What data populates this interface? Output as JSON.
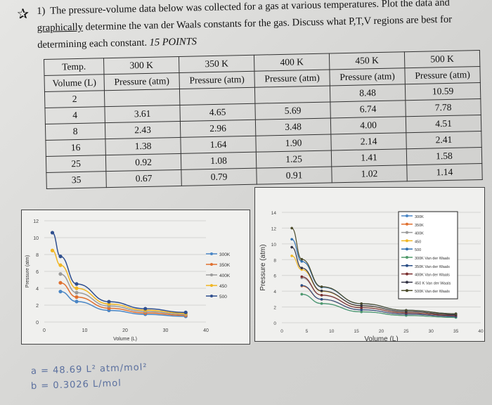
{
  "question": {
    "number": "1)",
    "text_before": "The pressure-volume data below was collected for a gas at various temperatures. Plot the data and ",
    "underlined": "graphically",
    "text_after": " determine the van der Waals constants for the gas. Discuss what P,T,V regions are best for determining each constant. ",
    "points": "15 POINTS",
    "icon": "star-icon"
  },
  "table": {
    "header1": [
      "Temp.",
      "300 K",
      "350 K",
      "400 K",
      "450 K",
      "500 K"
    ],
    "header2": [
      "Volume (L)",
      "Pressure (atm)",
      "Pressure (atm)",
      "Pressure (atm)",
      "Pressure (atm)",
      "Pressure (atm)"
    ],
    "rows": [
      [
        "2",
        "",
        "",
        "",
        "8.48",
        "10.59"
      ],
      [
        "4",
        "3.61",
        "4.65",
        "5.69",
        "6.74",
        "7.78"
      ],
      [
        "8",
        "2.43",
        "2.96",
        "3.48",
        "4.00",
        "4.51"
      ],
      [
        "16",
        "1.38",
        "1.64",
        "1.90",
        "2.14",
        "2.41"
      ],
      [
        "25",
        "0.92",
        "1.08",
        "1.25",
        "1.41",
        "1.58"
      ],
      [
        "35",
        "0.67",
        "0.79",
        "0.91",
        "1.02",
        "1.14"
      ]
    ]
  },
  "chart_data": [
    {
      "type": "line",
      "xlabel": "Volume (L)",
      "ylabel": "Pressure (atm)",
      "xlim": [
        0,
        40
      ],
      "ylim": [
        0,
        12
      ],
      "xticks": [
        "0",
        "10",
        "20",
        "30",
        "40"
      ],
      "yticks": [
        "0",
        "2",
        "4",
        "6",
        "8",
        "10",
        "12"
      ],
      "grid": true,
      "legend": "right",
      "x": [
        2,
        4,
        8,
        16,
        25,
        35
      ],
      "series": [
        {
          "name": "300K",
          "color": "#4a86c5",
          "values": [
            null,
            3.61,
            2.43,
            1.38,
            0.92,
            0.67
          ]
        },
        {
          "name": "350K",
          "color": "#e0702f",
          "values": [
            null,
            4.65,
            2.96,
            1.64,
            1.08,
            0.79
          ]
        },
        {
          "name": "400K",
          "color": "#9a9a9a",
          "values": [
            null,
            5.69,
            3.48,
            1.9,
            1.25,
            0.91
          ]
        },
        {
          "name": "450",
          "color": "#f0b623",
          "values": [
            8.48,
            6.74,
            4.0,
            2.14,
            1.41,
            1.02
          ]
        },
        {
          "name": "500",
          "color": "#2f4f8f",
          "values": [
            10.59,
            7.78,
            4.51,
            2.41,
            1.58,
            1.14
          ]
        }
      ]
    },
    {
      "type": "line",
      "xlabel": "Volume (L)",
      "ylabel": "Pressure (atm)",
      "xlim": [
        0,
        40
      ],
      "ylim": [
        0,
        14
      ],
      "xticks": [
        "0",
        "5",
        "10",
        "15",
        "20",
        "25",
        "30",
        "35",
        "40"
      ],
      "yticks": [
        "0",
        "2",
        "4",
        "6",
        "8",
        "10",
        "12",
        "14"
      ],
      "grid": true,
      "legend": "top-right",
      "x": [
        2,
        4,
        8,
        16,
        25,
        35
      ],
      "series": [
        {
          "name": "300K",
          "color": "#4a86c5",
          "values": [
            null,
            3.61,
            2.43,
            1.38,
            0.92,
            0.67
          ]
        },
        {
          "name": "350K",
          "color": "#e0702f",
          "values": [
            null,
            4.65,
            2.96,
            1.64,
            1.08,
            0.79
          ]
        },
        {
          "name": "400K",
          "color": "#9a9a9a",
          "values": [
            null,
            5.69,
            3.48,
            1.9,
            1.25,
            0.91
          ]
        },
        {
          "name": "450",
          "color": "#f0b623",
          "values": [
            8.48,
            6.74,
            4.0,
            2.14,
            1.41,
            1.02
          ]
        },
        {
          "name": "500",
          "color": "#2f6fb0",
          "values": [
            10.59,
            7.78,
            4.51,
            2.41,
            1.58,
            1.14
          ]
        },
        {
          "name": "300K Van der Waals",
          "color": "#4f9a6a",
          "values": [
            null,
            3.62,
            2.44,
            1.38,
            0.92,
            0.67
          ]
        },
        {
          "name": "350K Van der Waals",
          "color": "#2b4f86",
          "values": [
            null,
            4.73,
            2.97,
            1.64,
            1.09,
            0.79
          ]
        },
        {
          "name": "400K Van der Waals",
          "color": "#7a2e2e",
          "values": [
            null,
            5.84,
            3.5,
            1.9,
            1.25,
            0.91
          ]
        },
        {
          "name": "450 K Van der Waals",
          "color": "#333344",
          "values": [
            9.58,
            6.94,
            4.04,
            2.16,
            1.42,
            1.02
          ]
        },
        {
          "name": "500K Van der Waals",
          "color": "#4a4a2a",
          "values": [
            12.0,
            8.05,
            4.57,
            2.42,
            1.58,
            1.14
          ]
        }
      ]
    }
  ],
  "handwriting": {
    "a": "a = 48.69 L² atm/mol²",
    "b": "b = 0.3026 L/mol"
  }
}
